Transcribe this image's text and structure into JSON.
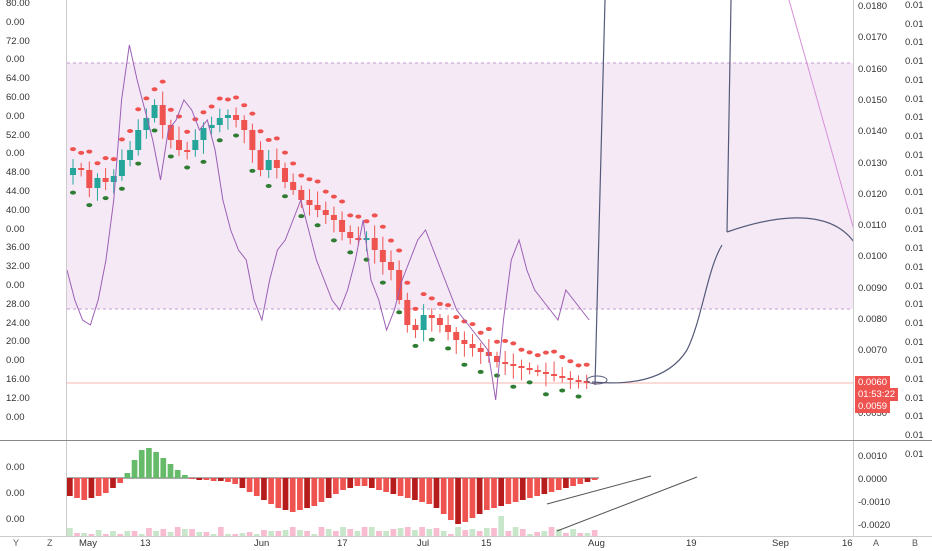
{
  "left_axis_labels": [
    "80.00",
    "0.00",
    "72.00",
    "0.00",
    "64.00",
    "60.00",
    "0.00",
    "52.00",
    "0.00",
    "48.00",
    "44.00",
    "40.00",
    "0.00",
    "36.00",
    "32.00",
    "0.00",
    "28.00",
    "24.00",
    "20.00",
    "0.00",
    "16.00",
    "12.00",
    "0.00"
  ],
  "left_osc_labels": [
    "0.00",
    "0.00",
    "0.00"
  ],
  "price_axis_labels": [
    "0.0180",
    "0.0170",
    "0.0160",
    "0.0150",
    "0.0140",
    "0.0130",
    "0.0120",
    "0.0110",
    "0.0100",
    "0.0090",
    "0.0080",
    "0.0070",
    "0.0060",
    "0.0050"
  ],
  "far_right_labels": [
    "0.01",
    "0.01",
    "0.01",
    "0.01",
    "0.01",
    "0.01",
    "0.01",
    "0.01",
    "0.01",
    "0.01",
    "0.01",
    "0.01",
    "0.01",
    "0.01",
    "0.01",
    "0.01",
    "0.01",
    "0.01",
    "0.01",
    "0.01",
    "0.01",
    "0.01",
    "0.01",
    "0.01",
    "0.01"
  ],
  "osc_axis_labels": [
    "0.0010",
    "0.0000",
    "-0.0010",
    "-0.0020"
  ],
  "price_tags": {
    "last": "0.0060",
    "countdown": "01:53:22",
    "bid": "0.0059"
  },
  "time_axis_labels": [
    "May",
    "13",
    "Jun",
    "17",
    "Jul",
    "15",
    "Aug",
    "19",
    "Sep",
    "16"
  ],
  "bottom_buttons": {
    "y": "Y",
    "z": "Z",
    "a": "A",
    "b": "B"
  },
  "colors": {
    "up": "#26a69a",
    "down": "#ef5350",
    "rsi_band": "#e1bee7",
    "rsi_line": "#9c5fb5",
    "tag_red": "#ef5350",
    "dots_up": "#2e7d32",
    "dots_down": "#ef5350"
  }
}
